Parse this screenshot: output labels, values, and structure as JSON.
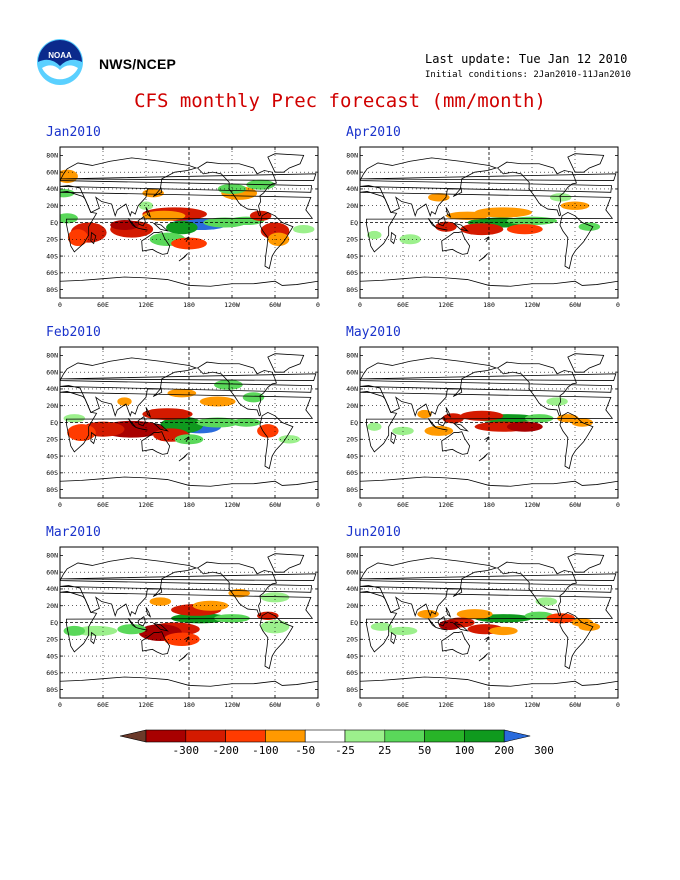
{
  "header": {
    "agency": "NWS/NCEP",
    "last_update": "Last update: Tue Jan 12 2010",
    "initial_conditions": "Initial conditions: 2Jan2010-11Jan2010",
    "title": "CFS monthly Prec forecast (mm/month)"
  },
  "logo": {
    "icon": "noaa-logo-icon"
  },
  "axes": {
    "lat_labels": [
      "80N",
      "60N",
      "40N",
      "20N",
      "EQ",
      "20S",
      "40S",
      "60S",
      "80S"
    ],
    "lon_labels": [
      "0",
      "60E",
      "120E",
      "180",
      "120W",
      "60W",
      "0"
    ]
  },
  "panels": [
    {
      "id": "jan",
      "label": "Jan2010"
    },
    {
      "id": "apr",
      "label": "Apr2010"
    },
    {
      "id": "feb",
      "label": "Feb2010"
    },
    {
      "id": "may",
      "label": "May2010"
    },
    {
      "id": "mar",
      "label": "Mar2010"
    },
    {
      "id": "jun",
      "label": "Jun2010"
    }
  ],
  "colorbar": {
    "labels": [
      "-300",
      "-200",
      "-100",
      "-50",
      "-25",
      "25",
      "50",
      "100",
      "200",
      "300"
    ],
    "colors": [
      "#6b3a2a",
      "#a80000",
      "#d41a00",
      "#ff3b00",
      "#ff9900",
      "#ffffff",
      "#9cf08c",
      "#5ad85a",
      "#28b428",
      "#0f9a1e",
      "#2a6bdc"
    ]
  },
  "colors": {
    "title": "#d00000",
    "panel_label": "#1a33cc",
    "strong_dry": "#a80000",
    "dry": "#d41a00",
    "mod_dry": "#ff3b00",
    "light_dry": "#ff9900",
    "light_wet": "#9cf08c",
    "wet": "#5ad85a",
    "very_wet": "#0f9a1e",
    "extreme_wet": "#2a6bdc"
  }
}
